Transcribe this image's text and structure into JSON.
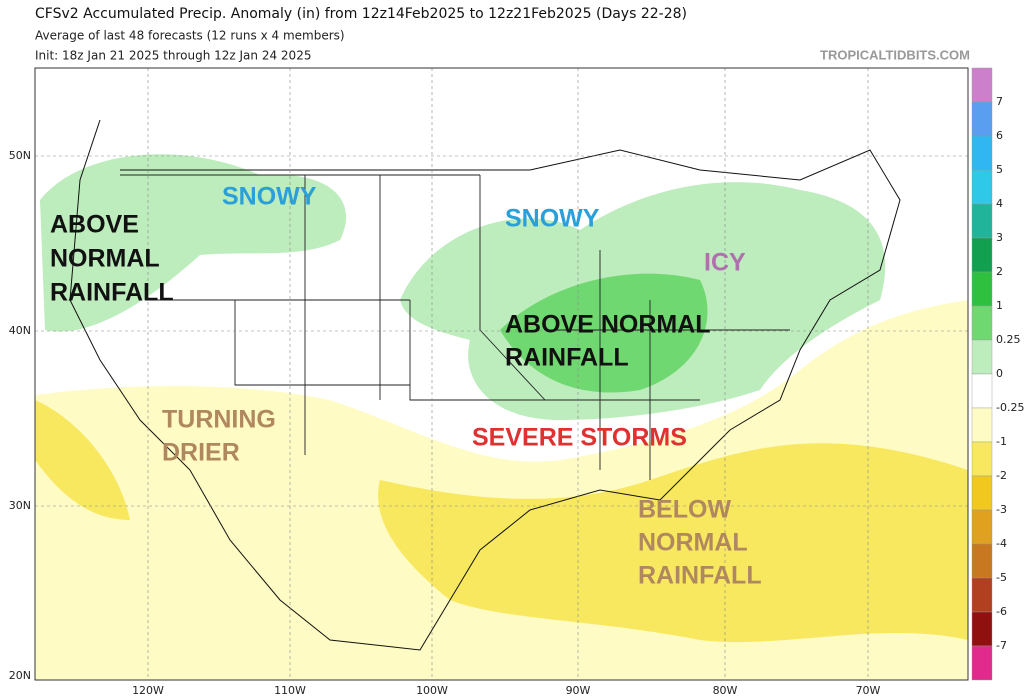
{
  "header": {
    "title": "CFSv2 Accumulated Precip. Anomaly (in) from 12z14Feb2025 to 12z21Feb2025 (Days 22-28)",
    "subtitle": "Average of last 48 forecasts (12 runs x 4 members)",
    "init": "Init: 18z Jan 21 2025 through 12z Jan 24 2025",
    "watermark": "TROPICALTIDBITS.COM"
  },
  "axes": {
    "lat": [
      "50N",
      "40N",
      "30N",
      "20N"
    ],
    "lon": [
      "120W",
      "110W",
      "100W",
      "90W",
      "80W",
      "70W"
    ]
  },
  "colorbar": {
    "labels": [
      7,
      6,
      5,
      4,
      3,
      2,
      1,
      0.25,
      0,
      -0.25,
      -1,
      -2,
      -3,
      -4,
      -5,
      -6,
      -7
    ],
    "colors": [
      "#cc80cc",
      "#5a9ef0",
      "#30b6f0",
      "#30c8e8",
      "#22b49a",
      "#12a050",
      "#30c040",
      "#70d870",
      "#bdecbd",
      "#ffffff",
      "#fffbc4",
      "#f8e860",
      "#f0c820",
      "#e0a020",
      "#c87820",
      "#b04020",
      "#901010",
      "#e02a8c"
    ]
  },
  "annotations": [
    {
      "lines": [
        "ABOVE",
        "NORMAL",
        "RAINFALL"
      ]
    },
    {
      "lines": [
        "SNOWY"
      ]
    },
    {
      "lines": [
        "SNOWY"
      ]
    },
    {
      "lines": [
        "ICY"
      ]
    },
    {
      "lines": [
        "ABOVE NORMAL",
        "RAINFALL"
      ]
    },
    {
      "lines": [
        "TURNING",
        "DRIER"
      ]
    },
    {
      "lines": [
        "SEVERE STORMS"
      ]
    },
    {
      "lines": [
        "BELOW",
        "NORMAL",
        "RAINFALL"
      ]
    }
  ]
}
